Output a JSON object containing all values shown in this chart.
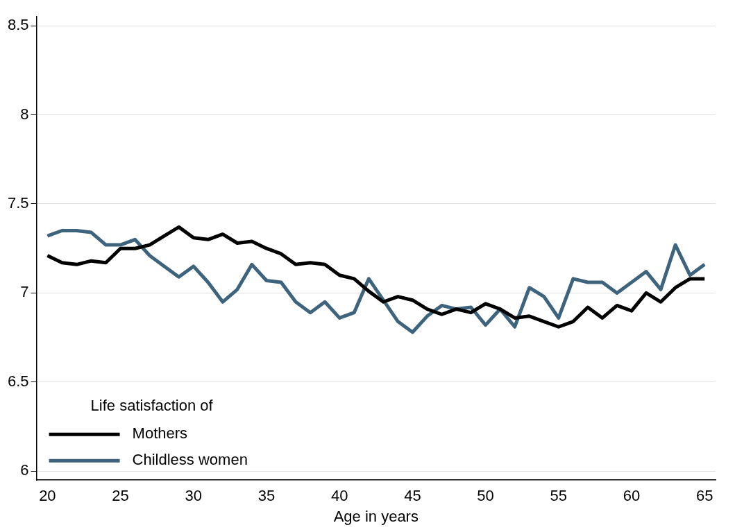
{
  "chart_data": {
    "type": "line",
    "xlabel": "Age in years",
    "legend_title": "Life satisfaction of",
    "legend": "bottom left",
    "grid": "y",
    "marker": "none",
    "line_style": "solid",
    "x": [
      20,
      21,
      22,
      23,
      24,
      25,
      26,
      27,
      28,
      29,
      30,
      31,
      32,
      33,
      34,
      35,
      36,
      37,
      38,
      39,
      40,
      41,
      42,
      43,
      44,
      45,
      46,
      47,
      48,
      49,
      50,
      51,
      52,
      53,
      54,
      55,
      56,
      57,
      58,
      59,
      60,
      61,
      62,
      63,
      64,
      65
    ],
    "xlim": [
      19.25,
      65.75
    ],
    "xticks": [
      20,
      25,
      30,
      35,
      40,
      45,
      50,
      55,
      60,
      65
    ],
    "ylim": [
      5.95,
      8.55
    ],
    "yticks": [
      6,
      6.5,
      7,
      7.5,
      8,
      8.5
    ],
    "series": [
      {
        "name": "Mothers",
        "color": "#000000",
        "values": [
          7.21,
          7.17,
          7.16,
          7.18,
          7.17,
          7.25,
          7.25,
          7.27,
          7.32,
          7.37,
          7.31,
          7.3,
          7.33,
          7.28,
          7.29,
          7.25,
          7.22,
          7.16,
          7.17,
          7.16,
          7.1,
          7.08,
          7.01,
          6.95,
          6.98,
          6.96,
          6.91,
          6.88,
          6.91,
          6.89,
          6.94,
          6.91,
          6.86,
          6.87,
          6.84,
          6.81,
          6.84,
          6.92,
          6.86,
          6.93,
          6.9,
          7.0,
          6.95,
          7.03,
          7.08,
          7.08
        ]
      },
      {
        "name": "Childless women",
        "color": "#3e647d",
        "values": [
          7.32,
          7.35,
          7.35,
          7.34,
          7.27,
          7.27,
          7.3,
          7.21,
          7.15,
          7.09,
          7.15,
          7.06,
          6.95,
          7.02,
          7.16,
          7.07,
          7.06,
          6.95,
          6.89,
          6.95,
          6.86,
          6.89,
          7.08,
          6.96,
          6.84,
          6.78,
          6.87,
          6.93,
          6.91,
          6.92,
          6.82,
          6.91,
          6.81,
          7.03,
          6.98,
          6.86,
          7.08,
          7.06,
          7.06,
          7.0,
          7.06,
          7.12,
          7.02,
          7.27,
          7.1,
          7.16
        ]
      }
    ]
  }
}
